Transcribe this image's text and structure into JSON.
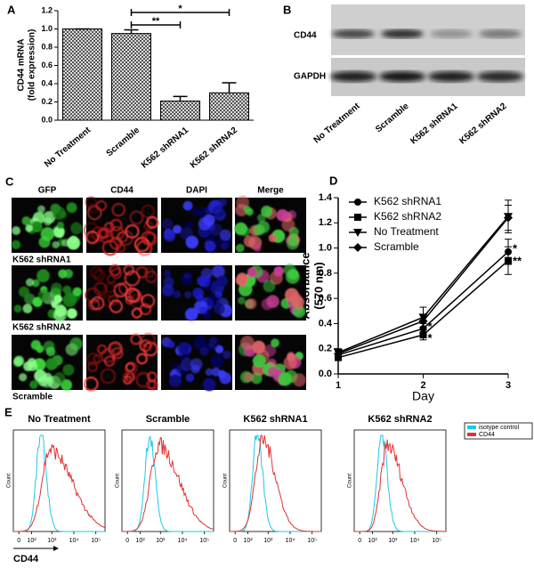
{
  "panel_labels": [
    "A",
    "B",
    "C",
    "D",
    "E"
  ],
  "chart_data": [
    {
      "type": "bar",
      "y_label": [
        "CD44 mRNA",
        "(fold expression)"
      ],
      "categories": [
        "No Treatment",
        "Scramble",
        "K562 shRNA1",
        "K562 shRNA2"
      ],
      "values": [
        1.0,
        0.95,
        0.21,
        0.3
      ],
      "errors": [
        0,
        0.04,
        0.05,
        0.11
      ],
      "color": "#000000",
      "ylim": [
        0,
        1.2
      ],
      "yticks": [
        {
          "value": 0,
          "label": "0.0"
        },
        0.2,
        0.4,
        0.6,
        0.8,
        {
          "value": 1,
          "label": "1.0"
        },
        1.2
      ],
      "significance": [
        "*",
        "**"
      ]
    },
    {
      "type": "line",
      "x_label": "Day",
      "y_label": [
        "Absorbance",
        "(570 nm)"
      ],
      "x": [
        1,
        2,
        3
      ],
      "xlim": [
        1,
        3
      ],
      "xticks": [
        1,
        2,
        3
      ],
      "ylim": [
        0,
        1.4
      ],
      "yticks": [
        {
          "value": 0,
          "label": "0.0"
        },
        0.2,
        0.4,
        0.6,
        0.8,
        {
          "value": 1,
          "label": "1.0"
        },
        1.2,
        1.4
      ],
      "color": "#000000",
      "series": [
        {
          "name": "K562 shRNA1",
          "marker": "circle",
          "values": [
            0.15,
            0.36,
            0.97
          ],
          "errors": [
            0.03,
            0.04,
            0.1
          ]
        },
        {
          "name": "K562 shRNA2",
          "marker": "square",
          "values": [
            0.13,
            0.31,
            0.9
          ],
          "errors": [
            0.02,
            0.04,
            0.11
          ]
        },
        {
          "name": "No Treatment",
          "marker": "triangle-down",
          "values": [
            0.17,
            0.45,
            1.25
          ],
          "errors": [
            0.03,
            0.08,
            0.13
          ]
        },
        {
          "name": "Scramble",
          "marker": "diamond",
          "values": [
            0.16,
            0.42,
            1.24
          ],
          "errors": [
            0.03,
            0.05,
            0.1
          ]
        }
      ],
      "legend": "upper left",
      "significance": [
        "*",
        "*",
        "*",
        "**"
      ]
    }
  ],
  "blot": {
    "rows": [
      "CD44",
      "GAPDH"
    ],
    "lanes": [
      "No Treatment",
      "Scramble",
      "K562 shRNA1",
      "K562 shRNA2"
    ]
  },
  "microscopy": {
    "columns": [
      "GFP",
      "CD44",
      "DAPI",
      "Merge"
    ],
    "rows": [
      "K562 shRNA1",
      "K562 shRNA2",
      "Scramble"
    ]
  },
  "flow": {
    "panels": [
      "No Treatment",
      "Scramble",
      "K562 shRNA1",
      "K562 shRNA2"
    ],
    "legend": [
      "isotype control",
      "CD44"
    ],
    "colors": [
      "#1ec8e6",
      "#e03232"
    ],
    "y_label": "Count",
    "x_label": "CD44",
    "xticks": [
      0,
      {
        "value": 100,
        "label": "10²"
      },
      {
        "value": 1000,
        "label": "10³"
      },
      {
        "value": 10000,
        "label": "10⁴"
      },
      {
        "value": 100000,
        "label": "10⁵"
      }
    ]
  }
}
